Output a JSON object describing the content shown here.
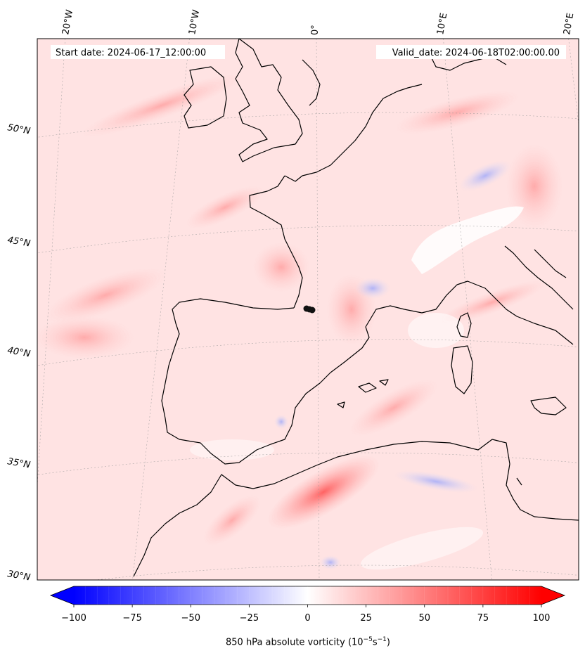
{
  "header": {
    "start": "Start date: 2024-06-17_12:00:00",
    "valid": "Valid_date: 2024-06-18T02:00:00.00"
  },
  "longitude_labels": [
    "20°W",
    "10°W",
    "0°",
    "10°E",
    "20°E"
  ],
  "latitude_labels": [
    "50°N",
    "45°N",
    "40°N",
    "35°N",
    "30°N"
  ],
  "colorbar": {
    "min": -100,
    "max": 100,
    "ticks": [
      "−100",
      "−75",
      "−50",
      "−25",
      "0",
      "25",
      "50",
      "75",
      "100"
    ],
    "label_prefix": "850 hPa absolute vorticity (10",
    "label_exp1": "−5",
    "label_mid": "s",
    "label_exp2": "−1",
    "label_suffix": ")",
    "colors": {
      "neg": "#0000ff",
      "zero": "#ffffff",
      "pos": "#ff0000"
    }
  },
  "map": {
    "land_outline_color": "#000000",
    "background_color": "#ffe8e8",
    "feature": "black dot marker near 0° longitude, ~42°N"
  }
}
